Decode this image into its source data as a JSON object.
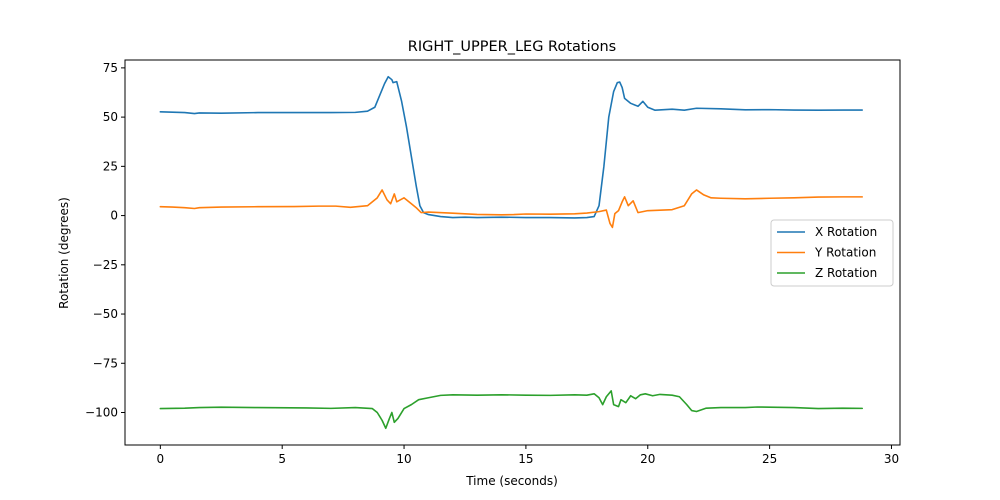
{
  "chart_data": {
    "type": "line",
    "title": "RIGHT_UPPER_LEG Rotations",
    "xlabel": "Time (seconds)",
    "ylabel": "Rotation (degrees)",
    "xlim": [
      -1.45,
      30.35
    ],
    "ylim": [
      -116.5,
      79
    ],
    "xticks": [
      0,
      5,
      10,
      15,
      20,
      25,
      30
    ],
    "yticks": [
      -100,
      -75,
      -50,
      -25,
      0,
      25,
      50,
      75
    ],
    "legend": "center-right",
    "grid": false,
    "series": [
      {
        "name": "X Rotation",
        "color": "#1f77b4",
        "points": [
          [
            0,
            52.7
          ],
          [
            0.5,
            52.5
          ],
          [
            1.0,
            52.3
          ],
          [
            1.4,
            51.8
          ],
          [
            1.6,
            52.1
          ],
          [
            2.5,
            52.0
          ],
          [
            4,
            52.3
          ],
          [
            6,
            52.3
          ],
          [
            7,
            52.3
          ],
          [
            8,
            52.4
          ],
          [
            8.5,
            53.0
          ],
          [
            8.8,
            55.0
          ],
          [
            9.0,
            61.0
          ],
          [
            9.2,
            67.0
          ],
          [
            9.35,
            70.5
          ],
          [
            9.5,
            69.0
          ],
          [
            9.55,
            67.5
          ],
          [
            9.7,
            68.0
          ],
          [
            9.9,
            58.0
          ],
          [
            10.1,
            45.0
          ],
          [
            10.3,
            30.0
          ],
          [
            10.5,
            15.0
          ],
          [
            10.65,
            5.0
          ],
          [
            10.8,
            1.5
          ],
          [
            11.0,
            0.5
          ],
          [
            11.5,
            -0.5
          ],
          [
            12,
            -1.0
          ],
          [
            12.5,
            -0.8
          ],
          [
            13,
            -1.0
          ],
          [
            14,
            -0.8
          ],
          [
            15,
            -1.0
          ],
          [
            16,
            -1.0
          ],
          [
            17,
            -1.2
          ],
          [
            17.5,
            -1.0
          ],
          [
            17.8,
            -0.5
          ],
          [
            18.0,
            5.0
          ],
          [
            18.2,
            25.0
          ],
          [
            18.4,
            50.0
          ],
          [
            18.6,
            63.0
          ],
          [
            18.75,
            67.5
          ],
          [
            18.85,
            67.8
          ],
          [
            18.95,
            65.0
          ],
          [
            19.05,
            59.5
          ],
          [
            19.3,
            57.0
          ],
          [
            19.6,
            55.5
          ],
          [
            19.8,
            58.0
          ],
          [
            20.0,
            55.0
          ],
          [
            20.3,
            53.5
          ],
          [
            21.0,
            54.0
          ],
          [
            21.5,
            53.5
          ],
          [
            22.0,
            54.5
          ],
          [
            23,
            54.2
          ],
          [
            24,
            53.7
          ],
          [
            25,
            53.8
          ],
          [
            26,
            53.6
          ],
          [
            27,
            53.5
          ],
          [
            28,
            53.6
          ],
          [
            28.8,
            53.6
          ]
        ]
      },
      {
        "name": "Y Rotation",
        "color": "#ff7f0e",
        "points": [
          [
            0,
            4.5
          ],
          [
            0.5,
            4.3
          ],
          [
            1.0,
            4.0
          ],
          [
            1.4,
            3.6
          ],
          [
            1.6,
            4.0
          ],
          [
            2.5,
            4.3
          ],
          [
            4,
            4.5
          ],
          [
            5.5,
            4.6
          ],
          [
            6.5,
            4.8
          ],
          [
            7.2,
            4.8
          ],
          [
            7.8,
            4.2
          ],
          [
            8.5,
            5.0
          ],
          [
            8.9,
            9.0
          ],
          [
            9.1,
            13.0
          ],
          [
            9.3,
            8.0
          ],
          [
            9.45,
            6.0
          ],
          [
            9.6,
            11.0
          ],
          [
            9.7,
            7.0
          ],
          [
            10.0,
            9.0
          ],
          [
            10.3,
            6.0
          ],
          [
            10.5,
            4.0
          ],
          [
            10.7,
            1.5
          ],
          [
            11,
            1.8
          ],
          [
            12,
            1.2
          ],
          [
            13,
            0.6
          ],
          [
            14,
            0.4
          ],
          [
            14.5,
            0.5
          ],
          [
            15,
            0.8
          ],
          [
            16,
            0.7
          ],
          [
            17,
            0.9
          ],
          [
            17.5,
            1.3
          ],
          [
            18.0,
            2.0
          ],
          [
            18.3,
            2.8
          ],
          [
            18.45,
            -4.0
          ],
          [
            18.55,
            -6.0
          ],
          [
            18.65,
            1.0
          ],
          [
            18.8,
            2.5
          ],
          [
            18.95,
            7.0
          ],
          [
            19.05,
            9.5
          ],
          [
            19.2,
            5.0
          ],
          [
            19.4,
            7.5
          ],
          [
            19.6,
            1.5
          ],
          [
            20.0,
            2.5
          ],
          [
            21.0,
            3.0
          ],
          [
            21.5,
            5.0
          ],
          [
            21.8,
            11.0
          ],
          [
            22.0,
            13.0
          ],
          [
            22.3,
            10.5
          ],
          [
            22.6,
            9.0
          ],
          [
            23,
            8.8
          ],
          [
            24,
            8.5
          ],
          [
            25,
            8.8
          ],
          [
            26,
            9.0
          ],
          [
            27,
            9.4
          ],
          [
            28,
            9.5
          ],
          [
            28.8,
            9.5
          ]
        ]
      },
      {
        "name": "Z Rotation",
        "color": "#2ca02c",
        "points": [
          [
            0,
            -98.0
          ],
          [
            1,
            -97.8
          ],
          [
            1.6,
            -97.5
          ],
          [
            2.5,
            -97.3
          ],
          [
            4,
            -97.5
          ],
          [
            6,
            -97.7
          ],
          [
            7,
            -97.9
          ],
          [
            8,
            -97.5
          ],
          [
            8.7,
            -98.0
          ],
          [
            8.9,
            -100.0
          ],
          [
            9.1,
            -104.0
          ],
          [
            9.25,
            -108.0
          ],
          [
            9.4,
            -103.0
          ],
          [
            9.5,
            -100.0
          ],
          [
            9.6,
            -105.0
          ],
          [
            9.75,
            -103.0
          ],
          [
            10.0,
            -98.0
          ],
          [
            10.3,
            -96.0
          ],
          [
            10.6,
            -93.5
          ],
          [
            11.0,
            -92.5
          ],
          [
            11.5,
            -91.3
          ],
          [
            12,
            -91.0
          ],
          [
            13,
            -91.2
          ],
          [
            14,
            -91.0
          ],
          [
            15,
            -91.2
          ],
          [
            16,
            -91.3
          ],
          [
            17,
            -91.0
          ],
          [
            17.5,
            -91.2
          ],
          [
            17.8,
            -90.5
          ],
          [
            18.0,
            -92.5
          ],
          [
            18.15,
            -96.0
          ],
          [
            18.3,
            -92.0
          ],
          [
            18.5,
            -89.0
          ],
          [
            18.6,
            -96.0
          ],
          [
            18.8,
            -97.0
          ],
          [
            18.9,
            -93.5
          ],
          [
            19.1,
            -95.0
          ],
          [
            19.3,
            -91.5
          ],
          [
            19.5,
            -93.0
          ],
          [
            19.7,
            -91.0
          ],
          [
            19.9,
            -90.5
          ],
          [
            20.2,
            -91.5
          ],
          [
            20.5,
            -90.8
          ],
          [
            21.0,
            -91.2
          ],
          [
            21.3,
            -92.0
          ],
          [
            21.6,
            -96.0
          ],
          [
            21.8,
            -99.0
          ],
          [
            22.0,
            -99.5
          ],
          [
            22.4,
            -97.8
          ],
          [
            23,
            -97.5
          ],
          [
            24,
            -97.5
          ],
          [
            24.5,
            -97.2
          ],
          [
            25,
            -97.3
          ],
          [
            26,
            -97.5
          ],
          [
            27,
            -98.0
          ],
          [
            28,
            -97.8
          ],
          [
            28.8,
            -97.9
          ]
        ]
      }
    ]
  }
}
